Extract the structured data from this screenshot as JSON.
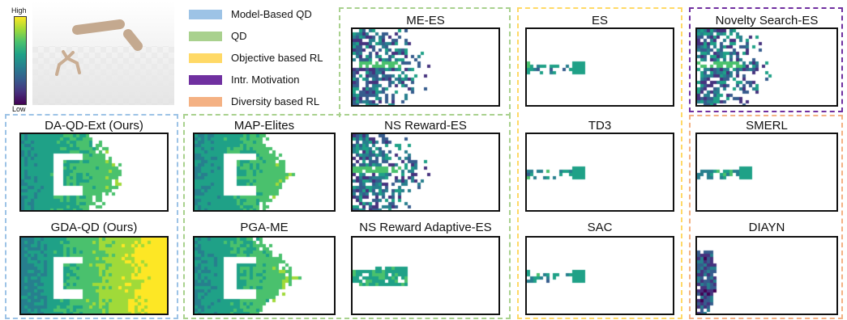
{
  "colorbar": {
    "high_label": "High",
    "low_label": "Low"
  },
  "legend": [
    {
      "label": "Model-Based QD",
      "color": "#9dc3e6"
    },
    {
      "label": "QD",
      "color": "#a9d18e"
    },
    {
      "label": "Objective based RL",
      "color": "#ffd966"
    },
    {
      "label": "Intr. Motivation",
      "color": "#7030a0"
    },
    {
      "label": "Diversity based RL",
      "color": "#f4b183"
    }
  ],
  "groups": {
    "model_based_qd": {
      "color": "#9dc3e6"
    },
    "qd": {
      "color": "#a9d18e"
    },
    "objective_rl": {
      "color": "#ffd966"
    },
    "intr_motivation": {
      "color": "#7030a0"
    },
    "diversity_rl": {
      "color": "#f4b183"
    }
  },
  "panels": [
    {
      "key": "da_qd_ext",
      "title": "DA-QD-Ext (Ours)",
      "style": "walls_half"
    },
    {
      "key": "gda_qd",
      "title": "GDA-QD (Ours)",
      "style": "walls_full"
    },
    {
      "key": "map_elites",
      "title": "MAP-Elites",
      "style": "walls_half"
    },
    {
      "key": "pga_me",
      "title": "PGA-ME",
      "style": "walls_half"
    },
    {
      "key": "me_es",
      "title": "ME-ES",
      "style": "sparse_blue"
    },
    {
      "key": "ns_reward_es",
      "title": "NS Reward-ES",
      "style": "sparse_blue"
    },
    {
      "key": "ns_reward_adaptive_es",
      "title": "NS Reward Adaptive-ES",
      "style": "cone_green"
    },
    {
      "key": "es",
      "title": "ES",
      "style": "small_cone"
    },
    {
      "key": "td3",
      "title": "TD3",
      "style": "small_cone"
    },
    {
      "key": "sac",
      "title": "SAC",
      "style": "small_cone"
    },
    {
      "key": "novelty_search_es",
      "title": "Novelty Search-ES",
      "style": "sparse_blue"
    },
    {
      "key": "smerl",
      "title": "SMERL",
      "style": "small_cone"
    },
    {
      "key": "diayn",
      "title": "DIAYN",
      "style": "left_column"
    }
  ]
}
